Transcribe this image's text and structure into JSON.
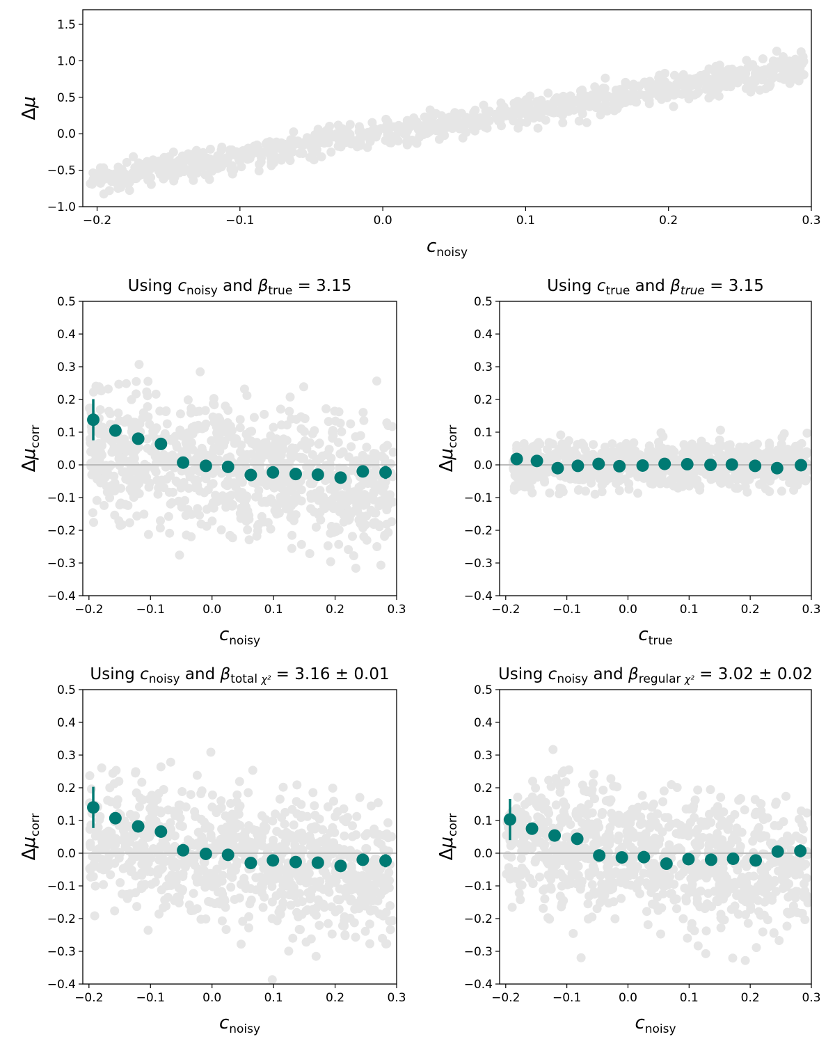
{
  "colors": {
    "scatter": "#e6e6e6",
    "binned": "#007a73",
    "zero_line": "#bbbbbb"
  },
  "chart_data": [
    {
      "type": "scatter",
      "title": {
        "pre": "",
        "var": "",
        "sub": "",
        "mid": "",
        "beta": "",
        "bsub": "",
        "bsub2": "",
        "tail": ""
      },
      "xlabel": {
        "var": "c",
        "sub": "noisy"
      },
      "ylabel": {
        "var": "Δμ",
        "sub": ""
      },
      "xlim": [
        -0.21,
        0.3
      ],
      "ylim": [
        -1.0,
        1.7
      ],
      "xticks": [
        -0.2,
        -0.1,
        0.0,
        0.1,
        0.2,
        0.3
      ],
      "yticks": [
        -1.0,
        -0.5,
        0.0,
        0.5,
        1.0,
        1.5
      ],
      "scatter_model": {
        "slope": 3.1,
        "intercept": 0.0,
        "scatter": 0.1,
        "n": 900,
        "x_range": [
          -0.205,
          0.295
        ]
      },
      "zero_line": false,
      "binned": []
    },
    {
      "type": "scatter",
      "title": {
        "pre": "Using ",
        "var": "c",
        "sub": "noisy",
        "mid": " and ",
        "beta": "β",
        "bsub": "true",
        "bsub2": "",
        "tail": " = 3.15"
      },
      "xlabel": {
        "var": "c",
        "sub": "noisy"
      },
      "ylabel": {
        "var": "Δμ",
        "sub": "corr"
      },
      "xlim": [
        -0.21,
        0.3
      ],
      "ylim": [
        -0.4,
        0.5
      ],
      "xticks": [
        -0.2,
        -0.1,
        0.0,
        0.1,
        0.2,
        0.3
      ],
      "yticks": [
        -0.4,
        -0.3,
        -0.2,
        -0.1,
        0.0,
        0.1,
        0.2,
        0.3,
        0.4,
        0.5
      ],
      "scatter_model": {
        "slope": -0.25,
        "intercept": 0.0,
        "scatter": 0.1,
        "n": 900,
        "x_range": [
          -0.2,
          0.295
        ]
      },
      "zero_line": true,
      "binned": [
        {
          "x": -0.193,
          "y": 0.138,
          "err": 0.063
        },
        {
          "x": -0.157,
          "y": 0.105,
          "err": 0.0
        },
        {
          "x": -0.12,
          "y": 0.08,
          "err": 0.0
        },
        {
          "x": -0.083,
          "y": 0.064,
          "err": 0.0
        },
        {
          "x": -0.047,
          "y": 0.007,
          "err": 0.0
        },
        {
          "x": -0.01,
          "y": -0.003,
          "err": 0.0
        },
        {
          "x": 0.026,
          "y": -0.006,
          "err": 0.0
        },
        {
          "x": 0.063,
          "y": -0.031,
          "err": 0.0
        },
        {
          "x": 0.099,
          "y": -0.023,
          "err": 0.0
        },
        {
          "x": 0.136,
          "y": -0.028,
          "err": 0.0
        },
        {
          "x": 0.172,
          "y": -0.03,
          "err": 0.0
        },
        {
          "x": 0.209,
          "y": -0.039,
          "err": 0.0
        },
        {
          "x": 0.245,
          "y": -0.02,
          "err": 0.0
        },
        {
          "x": 0.282,
          "y": -0.023,
          "err": 0.02
        }
      ]
    },
    {
      "type": "scatter",
      "title": {
        "pre": "Using ",
        "var": "c",
        "sub": "true",
        "mid": " and ",
        "beta": "β",
        "bsub": "true",
        "bsub2": "",
        "tail": " = 3.15"
      },
      "xlabel": {
        "var": "c",
        "sub": "true"
      },
      "ylabel": {
        "var": "Δμ",
        "sub": "corr"
      },
      "xlim": [
        -0.21,
        0.3
      ],
      "ylim": [
        -0.4,
        0.5
      ],
      "xticks": [
        -0.2,
        -0.1,
        0.0,
        0.1,
        0.2,
        0.3
      ],
      "yticks": [
        -0.4,
        -0.3,
        -0.2,
        -0.1,
        0.0,
        0.1,
        0.2,
        0.3,
        0.4,
        0.5
      ],
      "scatter_model": {
        "slope": 0.0,
        "intercept": 0.0,
        "scatter": 0.035,
        "n": 900,
        "x_range": [
          -0.19,
          0.295
        ]
      },
      "zero_line": true,
      "binned": [
        {
          "x": -0.182,
          "y": 0.018,
          "err": 0.0
        },
        {
          "x": -0.149,
          "y": 0.012,
          "err": 0.0
        },
        {
          "x": -0.115,
          "y": -0.01,
          "err": 0.0
        },
        {
          "x": -0.082,
          "y": -0.003,
          "err": 0.0
        },
        {
          "x": -0.048,
          "y": 0.003,
          "err": 0.0
        },
        {
          "x": -0.014,
          "y": -0.004,
          "err": 0.0
        },
        {
          "x": 0.024,
          "y": -0.002,
          "err": 0.0
        },
        {
          "x": 0.06,
          "y": 0.003,
          "err": 0.0
        },
        {
          "x": 0.097,
          "y": 0.002,
          "err": 0.0
        },
        {
          "x": 0.135,
          "y": 0.0,
          "err": 0.0
        },
        {
          "x": 0.17,
          "y": 0.001,
          "err": 0.0
        },
        {
          "x": 0.208,
          "y": -0.003,
          "err": 0.0
        },
        {
          "x": 0.244,
          "y": -0.01,
          "err": 0.0
        },
        {
          "x": 0.283,
          "y": -0.001,
          "err": 0.0
        }
      ]
    },
    {
      "type": "scatter",
      "title": {
        "pre": "Using ",
        "var": "c",
        "sub": "noisy",
        "mid": " and ",
        "beta": "β",
        "bsub": "total ",
        "bsub2": "χ²",
        "tail": " = 3.16 ± 0.01"
      },
      "xlabel": {
        "var": "c",
        "sub": "noisy"
      },
      "ylabel": {
        "var": "Δμ",
        "sub": "corr"
      },
      "xlim": [
        -0.21,
        0.3
      ],
      "ylim": [
        -0.4,
        0.5
      ],
      "xticks": [
        -0.2,
        -0.1,
        0.0,
        0.1,
        0.2,
        0.3
      ],
      "yticks": [
        -0.4,
        -0.3,
        -0.2,
        -0.1,
        0.0,
        0.1,
        0.2,
        0.3,
        0.4,
        0.5
      ],
      "scatter_model": {
        "slope": -0.25,
        "intercept": 0.0,
        "scatter": 0.1,
        "n": 900,
        "x_range": [
          -0.2,
          0.295
        ]
      },
      "zero_line": true,
      "binned": [
        {
          "x": -0.193,
          "y": 0.14,
          "err": 0.063
        },
        {
          "x": -0.157,
          "y": 0.107,
          "err": 0.0
        },
        {
          "x": -0.12,
          "y": 0.082,
          "err": 0.0
        },
        {
          "x": -0.083,
          "y": 0.066,
          "err": 0.0
        },
        {
          "x": -0.047,
          "y": 0.009,
          "err": 0.0
        },
        {
          "x": -0.01,
          "y": -0.002,
          "err": 0.0
        },
        {
          "x": 0.026,
          "y": -0.005,
          "err": 0.0
        },
        {
          "x": 0.063,
          "y": -0.03,
          "err": 0.0
        },
        {
          "x": 0.099,
          "y": -0.022,
          "err": 0.0
        },
        {
          "x": 0.136,
          "y": -0.027,
          "err": 0.0
        },
        {
          "x": 0.172,
          "y": -0.029,
          "err": 0.0
        },
        {
          "x": 0.209,
          "y": -0.039,
          "err": 0.0
        },
        {
          "x": 0.245,
          "y": -0.02,
          "err": 0.0
        },
        {
          "x": 0.282,
          "y": -0.023,
          "err": 0.02
        }
      ]
    },
    {
      "type": "scatter",
      "title": {
        "pre": "Using ",
        "var": "c",
        "sub": "noisy",
        "mid": " and ",
        "beta": "β",
        "bsub": "regular ",
        "bsub2": "χ²",
        "tail": " = 3.02 ± 0.02"
      },
      "xlabel": {
        "var": "c",
        "sub": "noisy"
      },
      "ylabel": {
        "var": "Δμ",
        "sub": "corr"
      },
      "xlim": [
        -0.21,
        0.3
      ],
      "ylim": [
        -0.4,
        0.5
      ],
      "xticks": [
        -0.2,
        -0.1,
        0.0,
        0.1,
        0.2,
        0.3
      ],
      "yticks": [
        -0.4,
        -0.3,
        -0.2,
        -0.1,
        0.0,
        0.1,
        0.2,
        0.3,
        0.4,
        0.5
      ],
      "scatter_model": {
        "slope": -0.2,
        "intercept": 0.0,
        "scatter": 0.1,
        "n": 900,
        "x_range": [
          -0.2,
          0.295
        ]
      },
      "zero_line": true,
      "binned": [
        {
          "x": -0.193,
          "y": 0.103,
          "err": 0.063
        },
        {
          "x": -0.157,
          "y": 0.075,
          "err": 0.0
        },
        {
          "x": -0.12,
          "y": 0.054,
          "err": 0.0
        },
        {
          "x": -0.083,
          "y": 0.044,
          "err": 0.0
        },
        {
          "x": -0.047,
          "y": -0.007,
          "err": 0.0
        },
        {
          "x": -0.01,
          "y": -0.013,
          "err": 0.0
        },
        {
          "x": 0.026,
          "y": -0.012,
          "err": 0.0
        },
        {
          "x": 0.063,
          "y": -0.032,
          "err": 0.0
        },
        {
          "x": 0.099,
          "y": -0.018,
          "err": 0.0
        },
        {
          "x": 0.136,
          "y": -0.02,
          "err": 0.0
        },
        {
          "x": 0.172,
          "y": -0.017,
          "err": 0.0
        },
        {
          "x": 0.209,
          "y": -0.022,
          "err": 0.0
        },
        {
          "x": 0.245,
          "y": 0.005,
          "err": 0.0
        },
        {
          "x": 0.282,
          "y": 0.007,
          "err": 0.02
        }
      ]
    }
  ]
}
